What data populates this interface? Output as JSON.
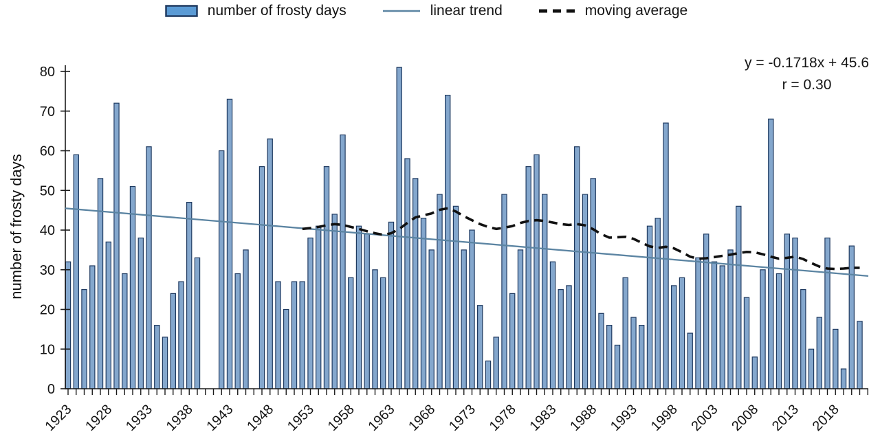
{
  "legend": {
    "bars_label": "number of frosty days",
    "trend_label": "linear trend",
    "ma_label": "moving average"
  },
  "annotation": {
    "equation": "y = -0.1718x + 45.6",
    "r_value": "r = 0.30"
  },
  "y_axis": {
    "title": "number of frosty days",
    "tick_labels": [
      "0",
      "10",
      "20",
      "30",
      "40",
      "50",
      "60",
      "70",
      "80"
    ],
    "min": 0,
    "max": 80
  },
  "x_axis": {
    "tick_labels": [
      "1923",
      "1928",
      "1933",
      "1938",
      "1943",
      "1948",
      "1953",
      "1958",
      "1963",
      "1968",
      "1973",
      "1978",
      "1983",
      "1988",
      "1993",
      "1998",
      "2003",
      "2008",
      "2013",
      "2018"
    ],
    "label_step_years": 5,
    "tick_step_years": 1
  },
  "chart_data": {
    "type": "bar",
    "title": "",
    "start_year": 1923,
    "end_year": 2021,
    "ylabel": "number of frosty days",
    "ylim": [
      0,
      80
    ],
    "grid": false,
    "legend_position": "top",
    "values": [
      32,
      59,
      25,
      31,
      53,
      37,
      72,
      29,
      51,
      38,
      61,
      16,
      13,
      24,
      27,
      47,
      33,
      0,
      0,
      60,
      73,
      29,
      35,
      0,
      56,
      63,
      27,
      20,
      27,
      27,
      38,
      41,
      56,
      44,
      64,
      28,
      41,
      39,
      30,
      28,
      42,
      81,
      58,
      53,
      43,
      35,
      49,
      74,
      46,
      35,
      40,
      21,
      7,
      13,
      49,
      24,
      35,
      56,
      59,
      49,
      32,
      25,
      26,
      61,
      49,
      53,
      19,
      16,
      11,
      28,
      18,
      16,
      41,
      43,
      67,
      26,
      28,
      14,
      33,
      39,
      32,
      31,
      35,
      46,
      23,
      8,
      30,
      68,
      29,
      39,
      38,
      25,
      10,
      18,
      38,
      15,
      5,
      36,
      17
    ],
    "series": [
      {
        "name": "number of frosty days",
        "style": "bar"
      },
      {
        "name": "linear trend",
        "style": "line"
      },
      {
        "name": "moving average",
        "style": "dashed-line"
      }
    ],
    "trend": {
      "slope": -0.1718,
      "intercept": 45.6,
      "r": 0.3
    },
    "moving_average": {
      "start_year": 1952,
      "values": [
        40.3,
        40.5,
        40.8,
        41.2,
        41.5,
        41.3,
        40.8,
        40.3,
        39.7,
        39.2,
        38.8,
        39.2,
        40.3,
        41.8,
        43.2,
        43.7,
        44.2,
        45.1,
        45.5,
        44.7,
        43.5,
        42.5,
        41.5,
        40.8,
        40.3,
        40.6,
        41.0,
        41.8,
        42.3,
        42.5,
        42.3,
        41.9,
        41.5,
        41.3,
        41.5,
        41.2,
        40.2,
        39.0,
        38.1,
        38.2,
        38.3,
        37.8,
        36.8,
        35.9,
        35.5,
        35.8,
        35.4,
        34.4,
        33.3,
        32.8,
        32.9,
        33.2,
        33.5,
        33.8,
        34.2,
        34.5,
        34.4,
        33.9,
        33.3,
        32.8,
        33.0,
        33.3,
        32.7,
        31.7,
        30.8,
        30.3,
        30.2,
        30.3,
        30.5,
        30.5
      ]
    },
    "colors": {
      "bar_fill": "#84a7cd",
      "bar_border": "#1f3a60",
      "legend_swatch_fill": "#5b9bd5",
      "trend_line": "#5b84a2",
      "moving_average": "#111111",
      "axis": "#1a1a1a",
      "text": "#141414"
    }
  }
}
